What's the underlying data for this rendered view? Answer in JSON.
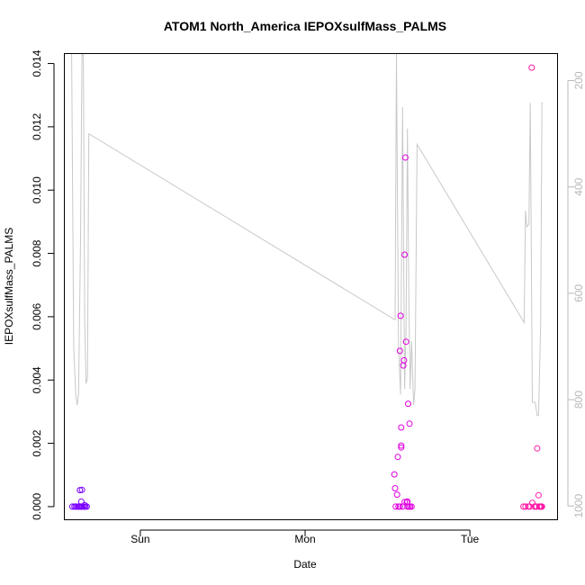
{
  "chart_data": {
    "type": "scatter",
    "title": "ATOM1 North_America IEPOXsulfMass_PALMS",
    "xlabel": "Date",
    "ylabel": "IEPOXsulfMass_PALMS",
    "x_unit": "hours since Saturday 00:00",
    "xlim": [
      13.0,
      84.7
    ],
    "ylim": [
      -0.0004,
      0.0143
    ],
    "x_ticks": [
      {
        "value": 24,
        "label": "Sun"
      },
      {
        "value": 48,
        "label": "Mon"
      },
      {
        "value": 72,
        "label": "Tue"
      }
    ],
    "y_ticks": [
      {
        "value": 0.0,
        "label": "0.000"
      },
      {
        "value": 0.002,
        "label": "0.002"
      },
      {
        "value": 0.004,
        "label": "0.004"
      },
      {
        "value": 0.006,
        "label": "0.006"
      },
      {
        "value": 0.008,
        "label": "0.008"
      },
      {
        "value": 0.01,
        "label": "0.010"
      },
      {
        "value": 0.012,
        "label": "0.012"
      },
      {
        "value": 0.014,
        "label": "0.014"
      }
    ],
    "right_axis": {
      "label": "",
      "lim": [
        1025,
        150
      ],
      "ticks": [
        {
          "value": 200,
          "label": "200"
        },
        {
          "value": 400,
          "label": "400"
        },
        {
          "value": 600,
          "label": "600"
        },
        {
          "value": 800,
          "label": "800"
        },
        {
          "value": 1000,
          "label": "1000"
        }
      ],
      "color": "#b8b8b8"
    },
    "line_series": {
      "color": "#c8c8c8",
      "points": [
        [
          14.0,
          150
        ],
        [
          14.3,
          700
        ],
        [
          14.6,
          790
        ],
        [
          14.8,
          810
        ],
        [
          15.0,
          790
        ],
        [
          15.3,
          500
        ],
        [
          15.5,
          150
        ],
        [
          15.7,
          150
        ],
        [
          15.9,
          650
        ],
        [
          16.1,
          770
        ],
        [
          16.3,
          760
        ],
        [
          16.5,
          300
        ],
        [
          61.1,
          650
        ],
        [
          61.3,
          150
        ],
        [
          61.6,
          700
        ],
        [
          61.9,
          790
        ],
        [
          62.2,
          250
        ],
        [
          62.5,
          780
        ],
        [
          62.7,
          660
        ],
        [
          62.9,
          290
        ],
        [
          63.1,
          600
        ],
        [
          63.3,
          780
        ],
        [
          63.5,
          690
        ],
        [
          63.8,
          810
        ],
        [
          64.0,
          780
        ],
        [
          64.3,
          320
        ],
        [
          79.9,
          655
        ],
        [
          80.1,
          445
        ],
        [
          80.3,
          475
        ],
        [
          80.6,
          470
        ],
        [
          80.8,
          242
        ],
        [
          81.1,
          805
        ],
        [
          81.5,
          805
        ],
        [
          81.8,
          830
        ],
        [
          82.0,
          830
        ],
        [
          82.3,
          660
        ],
        [
          82.5,
          240
        ]
      ]
    },
    "scatter_series": [
      {
        "color": "#7a00ff",
        "points": [
          [
            14.1,
            0.0
          ],
          [
            14.4,
            0.0
          ],
          [
            14.6,
            0.0
          ],
          [
            14.8,
            0.0
          ],
          [
            15.0,
            0.0
          ],
          [
            15.1,
            0.0
          ],
          [
            15.3,
            0.0
          ],
          [
            15.4,
            0.0
          ],
          [
            15.6,
            0.0
          ],
          [
            15.8,
            0.0
          ],
          [
            16.0,
            0.0
          ],
          [
            16.2,
            0.0
          ],
          [
            15.2,
            0.00052
          ],
          [
            15.5,
            0.00053
          ],
          [
            15.4,
            0.00016
          ],
          [
            15.9,
            5e-05
          ]
        ]
      },
      {
        "color": "#e000e0",
        "points": [
          [
            61.0,
            0.00102
          ],
          [
            61.1,
            0.00058
          ],
          [
            61.2,
            0.0
          ],
          [
            61.4,
            0.00038
          ],
          [
            61.5,
            0.00157
          ],
          [
            61.6,
            0.0
          ],
          [
            61.8,
            0.0
          ],
          [
            61.9,
            0.00603
          ],
          [
            61.8,
            0.00492
          ],
          [
            62.0,
            0.0025
          ],
          [
            62.0,
            0.00193
          ],
          [
            62.0,
            0.00187
          ],
          [
            62.2,
            0.0
          ],
          [
            62.3,
            0.00446
          ],
          [
            62.4,
            0.00462
          ],
          [
            62.5,
            0.00796
          ],
          [
            62.6,
            0.01103
          ],
          [
            62.7,
            0.00521
          ],
          [
            62.5,
            0.00015
          ],
          [
            62.8,
            0.00014
          ],
          [
            62.9,
            0.0
          ],
          [
            63.0,
            0.00325
          ],
          [
            63.2,
            0.00262
          ],
          [
            63.1,
            0.0
          ],
          [
            63.3,
            0.0
          ],
          [
            63.5,
            0.0
          ],
          [
            62.9,
            0.00016
          ]
        ]
      },
      {
        "color": "#ff1aa8",
        "points": [
          [
            79.8,
            0.0
          ],
          [
            80.1,
            0.0
          ],
          [
            80.5,
            0.0
          ],
          [
            80.7,
            0.0
          ],
          [
            81.0,
            0.01387
          ],
          [
            81.1,
            0.00012
          ],
          [
            81.4,
            0.0
          ],
          [
            81.6,
            0.0
          ],
          [
            81.8,
            0.00184
          ],
          [
            82.0,
            0.00036
          ],
          [
            82.1,
            0.0
          ],
          [
            82.3,
            0.0
          ],
          [
            82.4,
            0.0
          ],
          [
            82.5,
            0.0
          ],
          [
            81.7,
            0.0
          ],
          [
            82.2,
            0.0
          ]
        ]
      }
    ],
    "grid": false,
    "legend": "none"
  }
}
